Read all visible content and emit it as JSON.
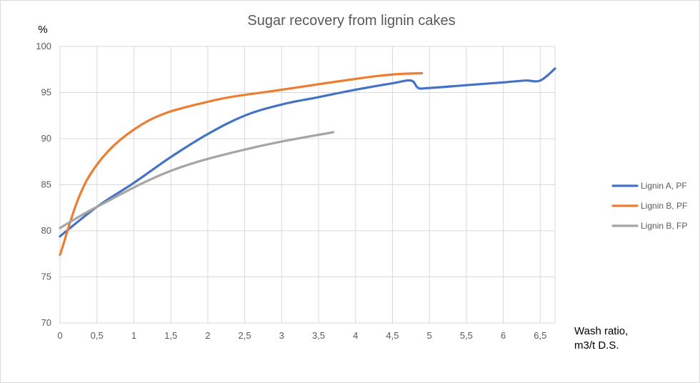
{
  "chart_data": {
    "type": "line",
    "title": "Sugar recovery from lignin cakes",
    "ylabel": "%",
    "xlabel_lines": [
      "Wash ratio,",
      "m3/t D.S."
    ],
    "xlim": [
      0,
      6.7
    ],
    "ylim": [
      70,
      100
    ],
    "x_ticks": [
      {
        "value": 0,
        "label": "0"
      },
      {
        "value": 0.5,
        "label": "0,5"
      },
      {
        "value": 1,
        "label": "1"
      },
      {
        "value": 1.5,
        "label": "1,5"
      },
      {
        "value": 2,
        "label": "2"
      },
      {
        "value": 2.5,
        "label": "2,5"
      },
      {
        "value": 3,
        "label": "3"
      },
      {
        "value": 3.5,
        "label": "3,5"
      },
      {
        "value": 4,
        "label": "4"
      },
      {
        "value": 4.5,
        "label": "4,5"
      },
      {
        "value": 5,
        "label": "5"
      },
      {
        "value": 5.5,
        "label": "5,5"
      },
      {
        "value": 6,
        "label": "6"
      },
      {
        "value": 6.5,
        "label": "6,5"
      }
    ],
    "y_ticks": [
      {
        "value": 70,
        "label": "70"
      },
      {
        "value": 75,
        "label": "75"
      },
      {
        "value": 80,
        "label": "80"
      },
      {
        "value": 85,
        "label": "85"
      },
      {
        "value": 90,
        "label": "90"
      },
      {
        "value": 95,
        "label": "95"
      },
      {
        "value": 100,
        "label": "100"
      }
    ],
    "grid": true,
    "legend_position": "right",
    "series": [
      {
        "name": "Lignin A, PF",
        "color": "#4472C4",
        "points": [
          [
            0,
            79.4
          ],
          [
            0.5,
            82.6
          ],
          [
            1,
            85.2
          ],
          [
            1.5,
            88.0
          ],
          [
            2,
            90.5
          ],
          [
            2.5,
            92.5
          ],
          [
            3,
            93.7
          ],
          [
            3.5,
            94.5
          ],
          [
            4,
            95.3
          ],
          [
            4.5,
            96.0
          ],
          [
            4.75,
            96.3
          ],
          [
            4.85,
            95.5
          ],
          [
            5,
            95.5
          ],
          [
            5.5,
            95.8
          ],
          [
            6,
            96.1
          ],
          [
            6.3,
            96.3
          ],
          [
            6.5,
            96.3
          ],
          [
            6.7,
            97.6
          ]
        ]
      },
      {
        "name": "Lignin B, PF",
        "color": "#ED7D31",
        "points": [
          [
            0,
            77.4
          ],
          [
            0.4,
            86.0
          ],
          [
            1.1,
            91.5
          ],
          [
            2,
            94.0
          ],
          [
            3,
            95.3
          ],
          [
            4.3,
            96.8
          ],
          [
            4.9,
            97.1
          ]
        ]
      },
      {
        "name": "Lignin B, FP",
        "color": "#A5A5A5",
        "points": [
          [
            0,
            80.3
          ],
          [
            0.5,
            82.6
          ],
          [
            1.5,
            86.5
          ],
          [
            2.6,
            89.0
          ],
          [
            3.7,
            90.7
          ]
        ]
      }
    ]
  }
}
